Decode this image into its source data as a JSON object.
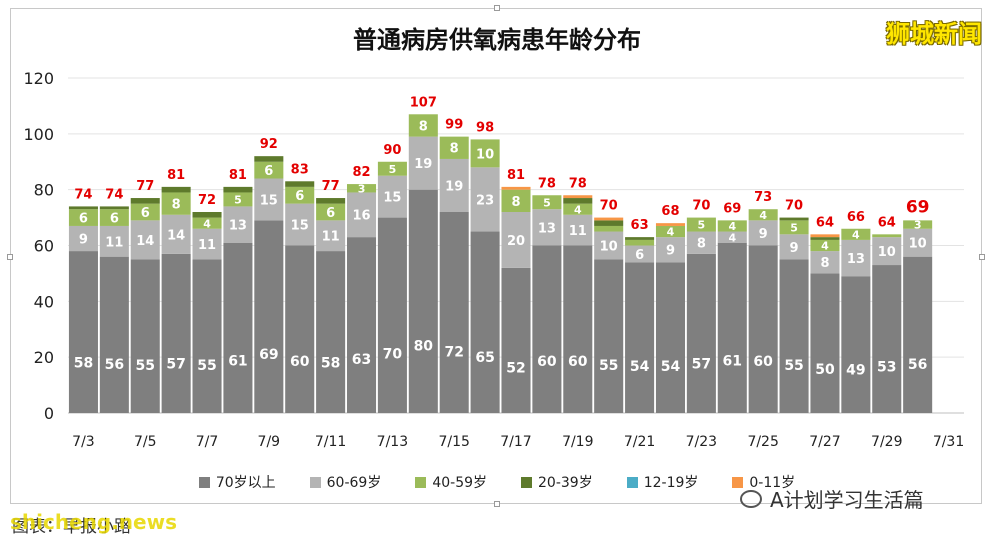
{
  "page": {
    "brand": "狮城新闻",
    "caption": "图表：早报小路",
    "watermark": "shicheng.news",
    "wechat_account": "A计划学习生活篇"
  },
  "colors": {
    "70plus": "#7f7f7f",
    "60to69": "#b4b4b4",
    "40to59": "#9bbb59",
    "20to39": "#5e7a2c",
    "12to19": "#4bacc6",
    "0to11": "#f79646",
    "total_label": "#e30000"
  },
  "chart_data": {
    "type": "bar",
    "stacked": true,
    "title": "普通病房供氧病患年龄分布",
    "ylim": [
      0,
      120
    ],
    "yticks": [
      0,
      20,
      40,
      60,
      80,
      100,
      120
    ],
    "x_tick_labels": [
      "7/3",
      "7/5",
      "7/7",
      "7/9",
      "7/11",
      "7/13",
      "7/15",
      "7/17",
      "7/19",
      "7/21",
      "7/23",
      "7/25",
      "7/27",
      "7/29",
      "7/31"
    ],
    "grid": true,
    "legend_position": "bottom",
    "categories": [
      "7/3",
      "7/4",
      "7/5",
      "7/6",
      "7/7",
      "7/8",
      "7/9",
      "7/10",
      "7/11",
      "7/12",
      "7/13",
      "7/14",
      "7/15",
      "7/16",
      "7/17",
      "7/18",
      "7/19",
      "7/20",
      "7/21",
      "7/22",
      "7/23",
      "7/24",
      "7/25",
      "7/26",
      "7/27",
      "7/28",
      "7/29",
      "7/30"
    ],
    "totals": [
      74,
      74,
      77,
      81,
      72,
      81,
      92,
      83,
      77,
      82,
      90,
      107,
      99,
      98,
      81,
      78,
      78,
      70,
      63,
      68,
      70,
      69,
      73,
      70,
      64,
      66,
      64,
      69
    ],
    "series": [
      {
        "name": "70岁以上",
        "values": [
          58,
          56,
          55,
          57,
          55,
          61,
          69,
          60,
          58,
          63,
          70,
          80,
          72,
          65,
          52,
          60,
          60,
          55,
          54,
          54,
          57,
          61,
          60,
          55,
          50,
          49,
          53,
          56
        ]
      },
      {
        "name": "60-69岁",
        "values": [
          9,
          11,
          14,
          14,
          11,
          13,
          15,
          15,
          11,
          16,
          15,
          19,
          19,
          23,
          20,
          13,
          11,
          10,
          6,
          9,
          8,
          4,
          9,
          9,
          8,
          13,
          10,
          10
        ]
      },
      {
        "name": "40-59岁",
        "values": [
          6,
          6,
          6,
          8,
          4,
          5,
          6,
          6,
          6,
          3,
          5,
          8,
          8,
          10,
          8,
          5,
          4,
          2,
          2,
          4,
          5,
          4,
          4,
          5,
          4,
          4,
          1,
          3
        ]
      },
      {
        "name": "20-39岁",
        "values": [
          1,
          1,
          2,
          2,
          2,
          2,
          2,
          2,
          2,
          0,
          0,
          0,
          0,
          0,
          0,
          0,
          2,
          2,
          1,
          0,
          0,
          0,
          0,
          1,
          1,
          0,
          0,
          0
        ]
      },
      {
        "name": "12-19岁",
        "values": [
          0,
          0,
          0,
          0,
          0,
          0,
          0,
          0,
          0,
          0,
          0,
          0,
          0,
          0,
          0,
          0,
          0,
          0,
          0,
          0,
          0,
          0,
          0,
          0,
          0,
          0,
          0,
          0
        ]
      },
      {
        "name": "0-11岁",
        "values": [
          0,
          0,
          0,
          0,
          0,
          0,
          0,
          0,
          0,
          0,
          0,
          0,
          0,
          0,
          1,
          0,
          1,
          1,
          0,
          1,
          0,
          0,
          0,
          0,
          1,
          0,
          0,
          0
        ]
      }
    ]
  }
}
